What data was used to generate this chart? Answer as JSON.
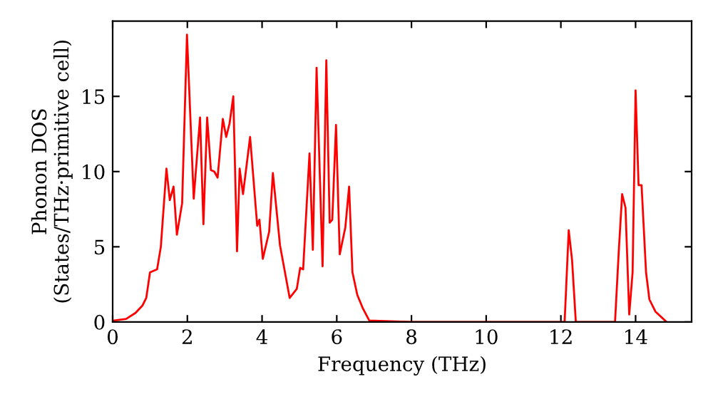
{
  "chart_data": {
    "type": "line",
    "xlabel": "Frequency (THz)",
    "ylabel": "Phonon DOS\n(States/THz·primitive cell)",
    "xlim": [
      0,
      15.5
    ],
    "ylim": [
      0,
      20
    ],
    "xticks": [
      0,
      2,
      4,
      6,
      8,
      10,
      12,
      14
    ],
    "yticks": [
      0,
      5,
      10,
      15
    ],
    "grid": false,
    "marker": "none",
    "line_style": "solid",
    "series": [
      {
        "color": "#ff0000",
        "x": [
          0.04,
          0.36,
          0.61,
          0.8,
          0.9,
          1.0,
          1.19,
          1.29,
          1.44,
          1.53,
          1.63,
          1.72,
          1.86,
          1.99,
          2.17,
          2.34,
          2.43,
          2.53,
          2.63,
          2.72,
          2.81,
          2.95,
          3.04,
          3.13,
          3.23,
          3.33,
          3.4,
          3.49,
          3.68,
          3.87,
          3.93,
          4.02,
          4.19,
          4.29,
          4.48,
          4.74,
          4.93,
          5.02,
          5.1,
          5.27,
          5.36,
          5.46,
          5.62,
          5.72,
          5.81,
          5.88,
          5.98,
          6.08,
          6.23,
          6.33,
          6.42,
          6.55,
          6.7,
          6.87,
          8,
          12.1,
          12.21,
          12.3,
          12.4,
          13.45,
          13.55,
          13.64,
          13.73,
          13.83,
          13.92,
          14.0,
          14.08,
          14.16,
          14.28,
          14.37,
          14.53,
          14.83
        ],
        "values": [
          0.1,
          0.2,
          0.6,
          1.1,
          1.6,
          3.3,
          3.5,
          5.0,
          10.2,
          8.1,
          9.0,
          5.8,
          7.9,
          19.1,
          8.2,
          13.6,
          6.5,
          13.6,
          10.1,
          10.0,
          9.6,
          13.5,
          12.3,
          13.2,
          15.0,
          4.7,
          10.2,
          8.5,
          12.3,
          6.4,
          6.8,
          4.2,
          6.0,
          9.9,
          5.1,
          1.6,
          2.2,
          3.6,
          3.5,
          11.2,
          4.8,
          16.9,
          3.7,
          17.4,
          6.6,
          6.8,
          13.1,
          4.5,
          6.3,
          9.0,
          3.3,
          1.8,
          0.9,
          0.1,
          0,
          0,
          6.1,
          4.1,
          0,
          0,
          4.7,
          8.5,
          7.6,
          0.5,
          3.3,
          15.4,
          9.1,
          9.1,
          3.3,
          1.5,
          0.7,
          0
        ]
      }
    ]
  }
}
